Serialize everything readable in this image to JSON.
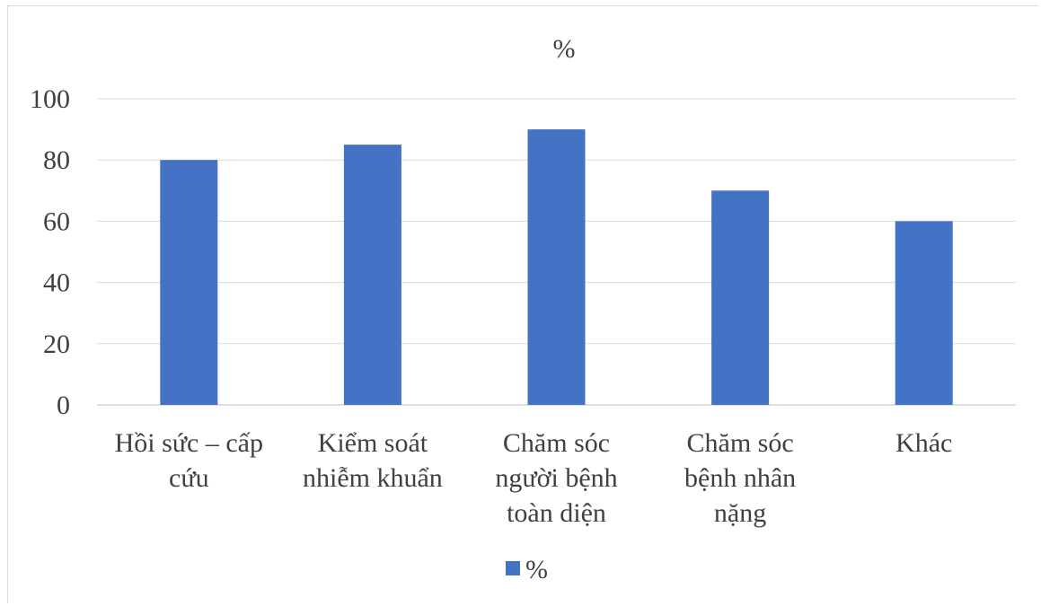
{
  "chart_data": {
    "type": "bar",
    "title": "%",
    "categories": [
      [
        "Hồi sức – cấp",
        "cứu"
      ],
      [
        "Kiểm soát",
        "nhiễm khuẩn"
      ],
      [
        "Chăm sóc",
        "người bệnh",
        "toàn diện"
      ],
      [
        "Chăm sóc",
        "bệnh nhân",
        "nặng"
      ],
      [
        "Khác"
      ]
    ],
    "series": [
      {
        "name": "%",
        "values": [
          80,
          85,
          90,
          70,
          60
        ],
        "color": "#4472C4"
      }
    ],
    "ylim": [
      0,
      100
    ],
    "yticks": [
      0,
      20,
      40,
      60,
      80,
      100
    ],
    "grid": true,
    "legend_position": "bottom",
    "xlabel": "",
    "ylabel": ""
  }
}
